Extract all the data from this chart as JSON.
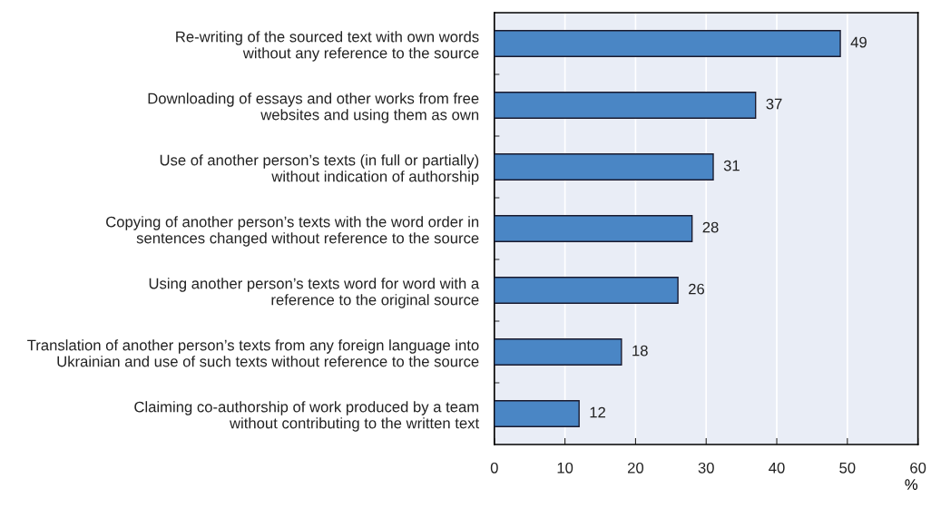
{
  "chart_data": {
    "type": "bar",
    "orientation": "horizontal",
    "xlabel": "%",
    "categories": [
      "Re-writing of the sourced text with own words\nwithout any reference to the source",
      "Downloading of essays and other works from free\nwebsites and using them as own",
      "Use of another person’s texts (in full or partially)\nwithout indication of authorship",
      "Copying of another person’s texts with the word order in\nsentences changed without reference to the source",
      "Using another person’s texts word for word with a\nreference to the original source",
      "Translation of another person’s texts from any foreign language into\nUkrainian and use of such texts without reference to the source",
      "Claiming co-authorship of work produced by a team\nwithout contributing to the written text"
    ],
    "values": [
      49,
      37,
      31,
      28,
      26,
      18,
      12
    ],
    "color": "#4a86c5",
    "xlim": [
      0,
      60
    ],
    "xticks": [
      0,
      10,
      20,
      30,
      40,
      50,
      60
    ],
    "grid": "x",
    "data_labels": true,
    "legend": false
  }
}
